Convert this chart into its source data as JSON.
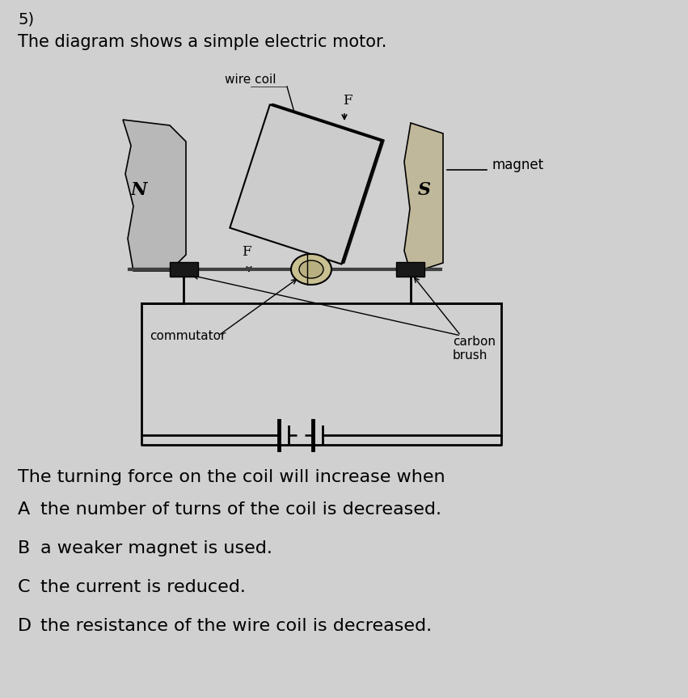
{
  "question_number": "5)",
  "title": "The diagram shows a simple electric motor.",
  "background_color": "#d0d0d0",
  "text_color": "#000000",
  "question_text": "The turning force on the coil will increase when",
  "options": [
    {
      "label": "A",
      "text": "  the number of turns of the coil is decreased."
    },
    {
      "label": "B",
      "text": "  a weaker magnet is used."
    },
    {
      "label": "C",
      "text": "  the current is reduced."
    },
    {
      "label": "D",
      "text": "  the resistance of the wire coil is decreased."
    }
  ],
  "diagram_labels": {
    "wire_coil": "wire coil",
    "magnet": "magnet",
    "commutator": "commutator",
    "carbon_brush": "carbon\nbrush",
    "F_top": "F",
    "F_bottom": "F",
    "N_label": "N",
    "S_label": "S"
  }
}
